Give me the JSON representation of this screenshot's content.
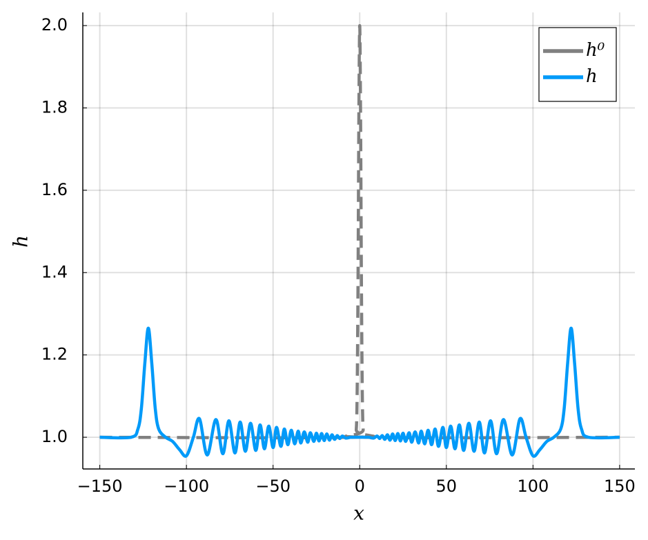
{
  "chart_data": {
    "type": "line",
    "xlabel": "x",
    "ylabel": "h",
    "xlim": [
      -159.8,
      158.8
    ],
    "ylim": [
      0.923,
      2.032
    ],
    "xticks": [
      {
        "value": -150,
        "label": "−150"
      },
      {
        "value": -100,
        "label": "−100"
      },
      {
        "value": -50,
        "label": "−50"
      },
      0,
      50,
      100,
      150
    ],
    "yticks": [
      {
        "value": 1.0,
        "label": "1.0"
      },
      {
        "value": 1.2,
        "label": "1.2"
      },
      {
        "value": 1.4,
        "label": "1.4"
      },
      {
        "value": 1.6,
        "label": "1.6"
      },
      {
        "value": 1.8,
        "label": "1.8"
      },
      {
        "value": 2.0,
        "label": "2.0"
      }
    ],
    "grid": true,
    "legend": "top-right",
    "series": [
      {
        "name": "h⁰",
        "color": "#808080",
        "dash": true,
        "x": [
          -150,
          -3,
          -2,
          -1.5,
          -1,
          -0.5,
          0,
          0.5,
          1,
          1.5,
          2,
          3,
          150
        ],
        "values": [
          1,
          1.0001,
          1.018,
          1.105,
          1.368,
          1.779,
          2.0,
          1.779,
          1.368,
          1.105,
          1.018,
          1.0001,
          1
        ]
      },
      {
        "name": "h",
        "color": "#009af9",
        "dash": false,
        "x": [
          -150,
          -132,
          -128,
          -126,
          -124,
          -122,
          -120,
          -118,
          -116,
          -112,
          -108,
          -104,
          -100,
          -96,
          -92.5,
          -88,
          -83,
          -79,
          -75.5,
          -72,
          -69,
          -66,
          -63,
          -60,
          -57.5,
          -55,
          -52.5,
          -50,
          -48,
          -45.5,
          -43.5,
          -41.5,
          -39.5,
          -37.5,
          -35.5,
          -34,
          -32,
          -30,
          -28.5,
          -26.5,
          -25,
          -23.5,
          -22,
          -20.5,
          -19,
          -17.5,
          -16,
          -14.5,
          -13,
          -11.5,
          -10,
          -8,
          -5,
          0,
          5,
          8,
          10,
          11.5,
          13,
          14.5,
          16,
          17.5,
          19,
          20.5,
          22,
          23.5,
          25,
          26.5,
          28.5,
          30,
          32,
          34,
          35.5,
          37.5,
          39.5,
          41.5,
          43.5,
          45.5,
          48,
          50,
          52.5,
          55,
          57.5,
          60,
          63,
          66,
          69,
          72,
          75.5,
          79,
          83,
          88,
          92.5,
          96,
          100,
          104,
          108,
          112,
          116,
          118,
          120,
          122,
          124,
          126,
          128,
          132,
          150
        ],
        "values": [
          1.0,
          1.0,
          1.02,
          1.07,
          1.18,
          1.265,
          1.18,
          1.07,
          1.02,
          1.0,
          0.99,
          0.97,
          0.955,
          1.0,
          1.045,
          0.957,
          1.043,
          0.96,
          1.04,
          0.962,
          1.037,
          0.966,
          1.034,
          0.968,
          1.03,
          0.972,
          1.027,
          0.975,
          1.024,
          0.978,
          1.02,
          0.982,
          1.017,
          0.984,
          1.015,
          0.986,
          1.013,
          0.988,
          1.011,
          0.99,
          1.01,
          0.991,
          1.009,
          0.992,
          1.008,
          0.993,
          1.006,
          0.995,
          1.004,
          0.997,
          1.003,
          0.998,
          1.0,
          1.0,
          1.0,
          0.998,
          1.003,
          0.997,
          1.004,
          0.995,
          1.006,
          0.993,
          1.008,
          0.992,
          1.009,
          0.991,
          1.01,
          0.99,
          1.011,
          0.988,
          1.013,
          0.986,
          1.015,
          0.984,
          1.017,
          0.982,
          1.02,
          0.978,
          1.024,
          0.975,
          1.027,
          0.972,
          1.03,
          0.968,
          1.034,
          0.966,
          1.037,
          0.962,
          1.04,
          0.96,
          1.043,
          0.957,
          1.045,
          1.0,
          0.955,
          0.97,
          0.99,
          1.0,
          1.02,
          1.07,
          1.18,
          1.265,
          1.18,
          1.07,
          1.02,
          1.0,
          1.0
        ]
      }
    ]
  }
}
